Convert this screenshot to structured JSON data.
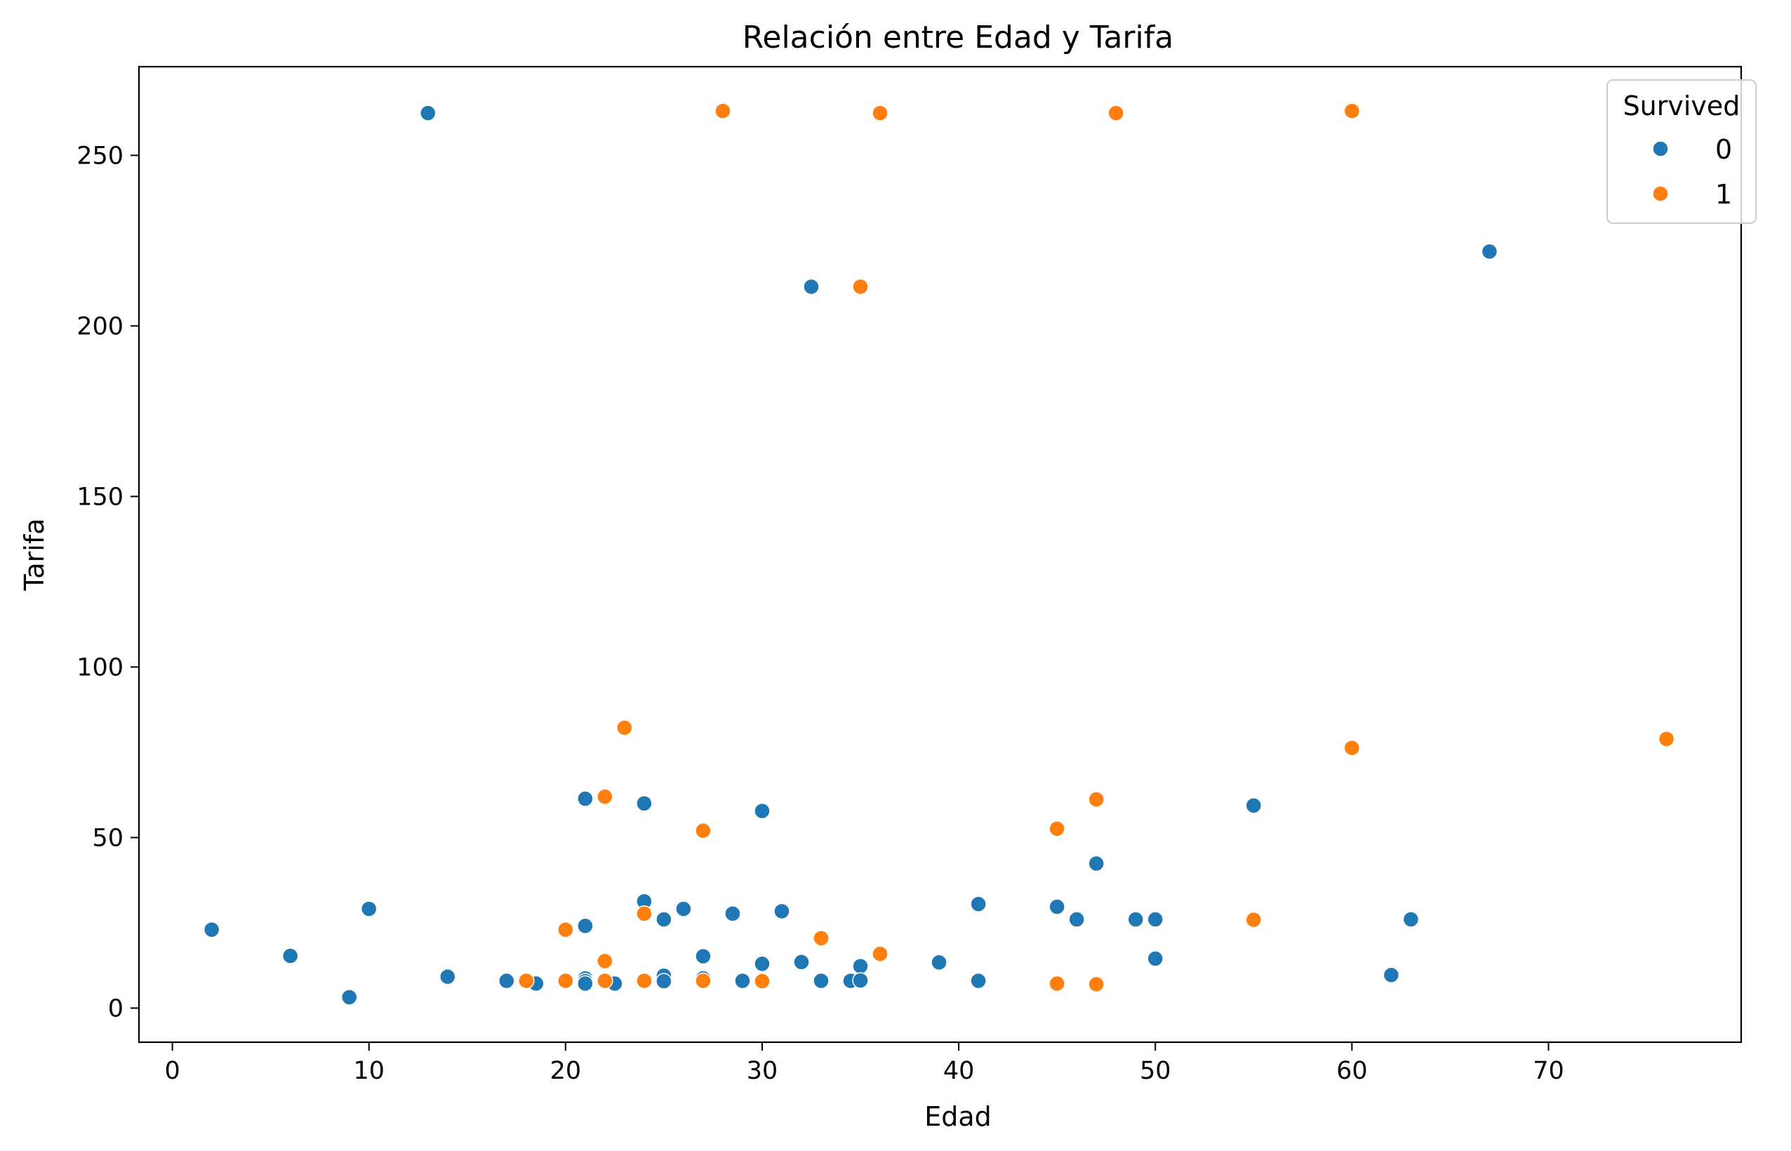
{
  "chart_data": {
    "type": "scatter",
    "title": "Relación entre Edad y Tarifa",
    "xlabel": "Edad",
    "ylabel": "Tarifa",
    "xlim": [
      -1.7,
      79.8
    ],
    "ylim": [
      -10,
      276
    ],
    "xticks": [
      0,
      10,
      20,
      30,
      40,
      50,
      60,
      70
    ],
    "yticks": [
      0,
      50,
      100,
      150,
      200,
      250
    ],
    "grid": false,
    "legend": {
      "title": "Survived",
      "placement": "top-right"
    },
    "series": [
      {
        "name": "0",
        "color": "#1f77b4",
        "points": [
          [
            13,
            262.4
          ],
          [
            32.5,
            211.5
          ],
          [
            67,
            221.8
          ],
          [
            21,
            61.4
          ],
          [
            24,
            60
          ],
          [
            30,
            57.8
          ],
          [
            55,
            59.4
          ],
          [
            47,
            42.4
          ],
          [
            2,
            23
          ],
          [
            6,
            15.3
          ],
          [
            9,
            3.2
          ],
          [
            10,
            29.1
          ],
          [
            14,
            9.2
          ],
          [
            17,
            8
          ],
          [
            18.5,
            7.2
          ],
          [
            21,
            24.1
          ],
          [
            21,
            8.7
          ],
          [
            21,
            7.9
          ],
          [
            21,
            7.2
          ],
          [
            22,
            13.5
          ],
          [
            22.5,
            7.2
          ],
          [
            24,
            31.3
          ],
          [
            25,
            26
          ],
          [
            25,
            9.5
          ],
          [
            25,
            7.9
          ],
          [
            26,
            29.1
          ],
          [
            27,
            15.2
          ],
          [
            27,
            8.7
          ],
          [
            28.5,
            27.7
          ],
          [
            29,
            8
          ],
          [
            30,
            13
          ],
          [
            31,
            28.4
          ],
          [
            32,
            13.5
          ],
          [
            33,
            8
          ],
          [
            34.5,
            8
          ],
          [
            35,
            12.3
          ],
          [
            35,
            8.1
          ],
          [
            39,
            13.4
          ],
          [
            41,
            30.5
          ],
          [
            41,
            8
          ],
          [
            45,
            29.7
          ],
          [
            46,
            26
          ],
          [
            49,
            26
          ],
          [
            50,
            26
          ],
          [
            50,
            14.5
          ],
          [
            62,
            9.7
          ],
          [
            63,
            26
          ]
        ]
      },
      {
        "name": "1",
        "color": "#ff7f0e",
        "points": [
          [
            28,
            263
          ],
          [
            36,
            262.4
          ],
          [
            48,
            262.4
          ],
          [
            60,
            263
          ],
          [
            35,
            211.5
          ],
          [
            23,
            82.2
          ],
          [
            60,
            76.3
          ],
          [
            76,
            78.9
          ],
          [
            22,
            62
          ],
          [
            27,
            52
          ],
          [
            45,
            52.6
          ],
          [
            47,
            61.2
          ],
          [
            20,
            23
          ],
          [
            24,
            27.7
          ],
          [
            33,
            20.5
          ],
          [
            36,
            15.9
          ],
          [
            22,
            13.8
          ],
          [
            18,
            8
          ],
          [
            20,
            8
          ],
          [
            22,
            8
          ],
          [
            24,
            8
          ],
          [
            27,
            8
          ],
          [
            30,
            7.9
          ],
          [
            45,
            7.2
          ],
          [
            47,
            7
          ],
          [
            55,
            25.9
          ]
        ]
      }
    ]
  }
}
